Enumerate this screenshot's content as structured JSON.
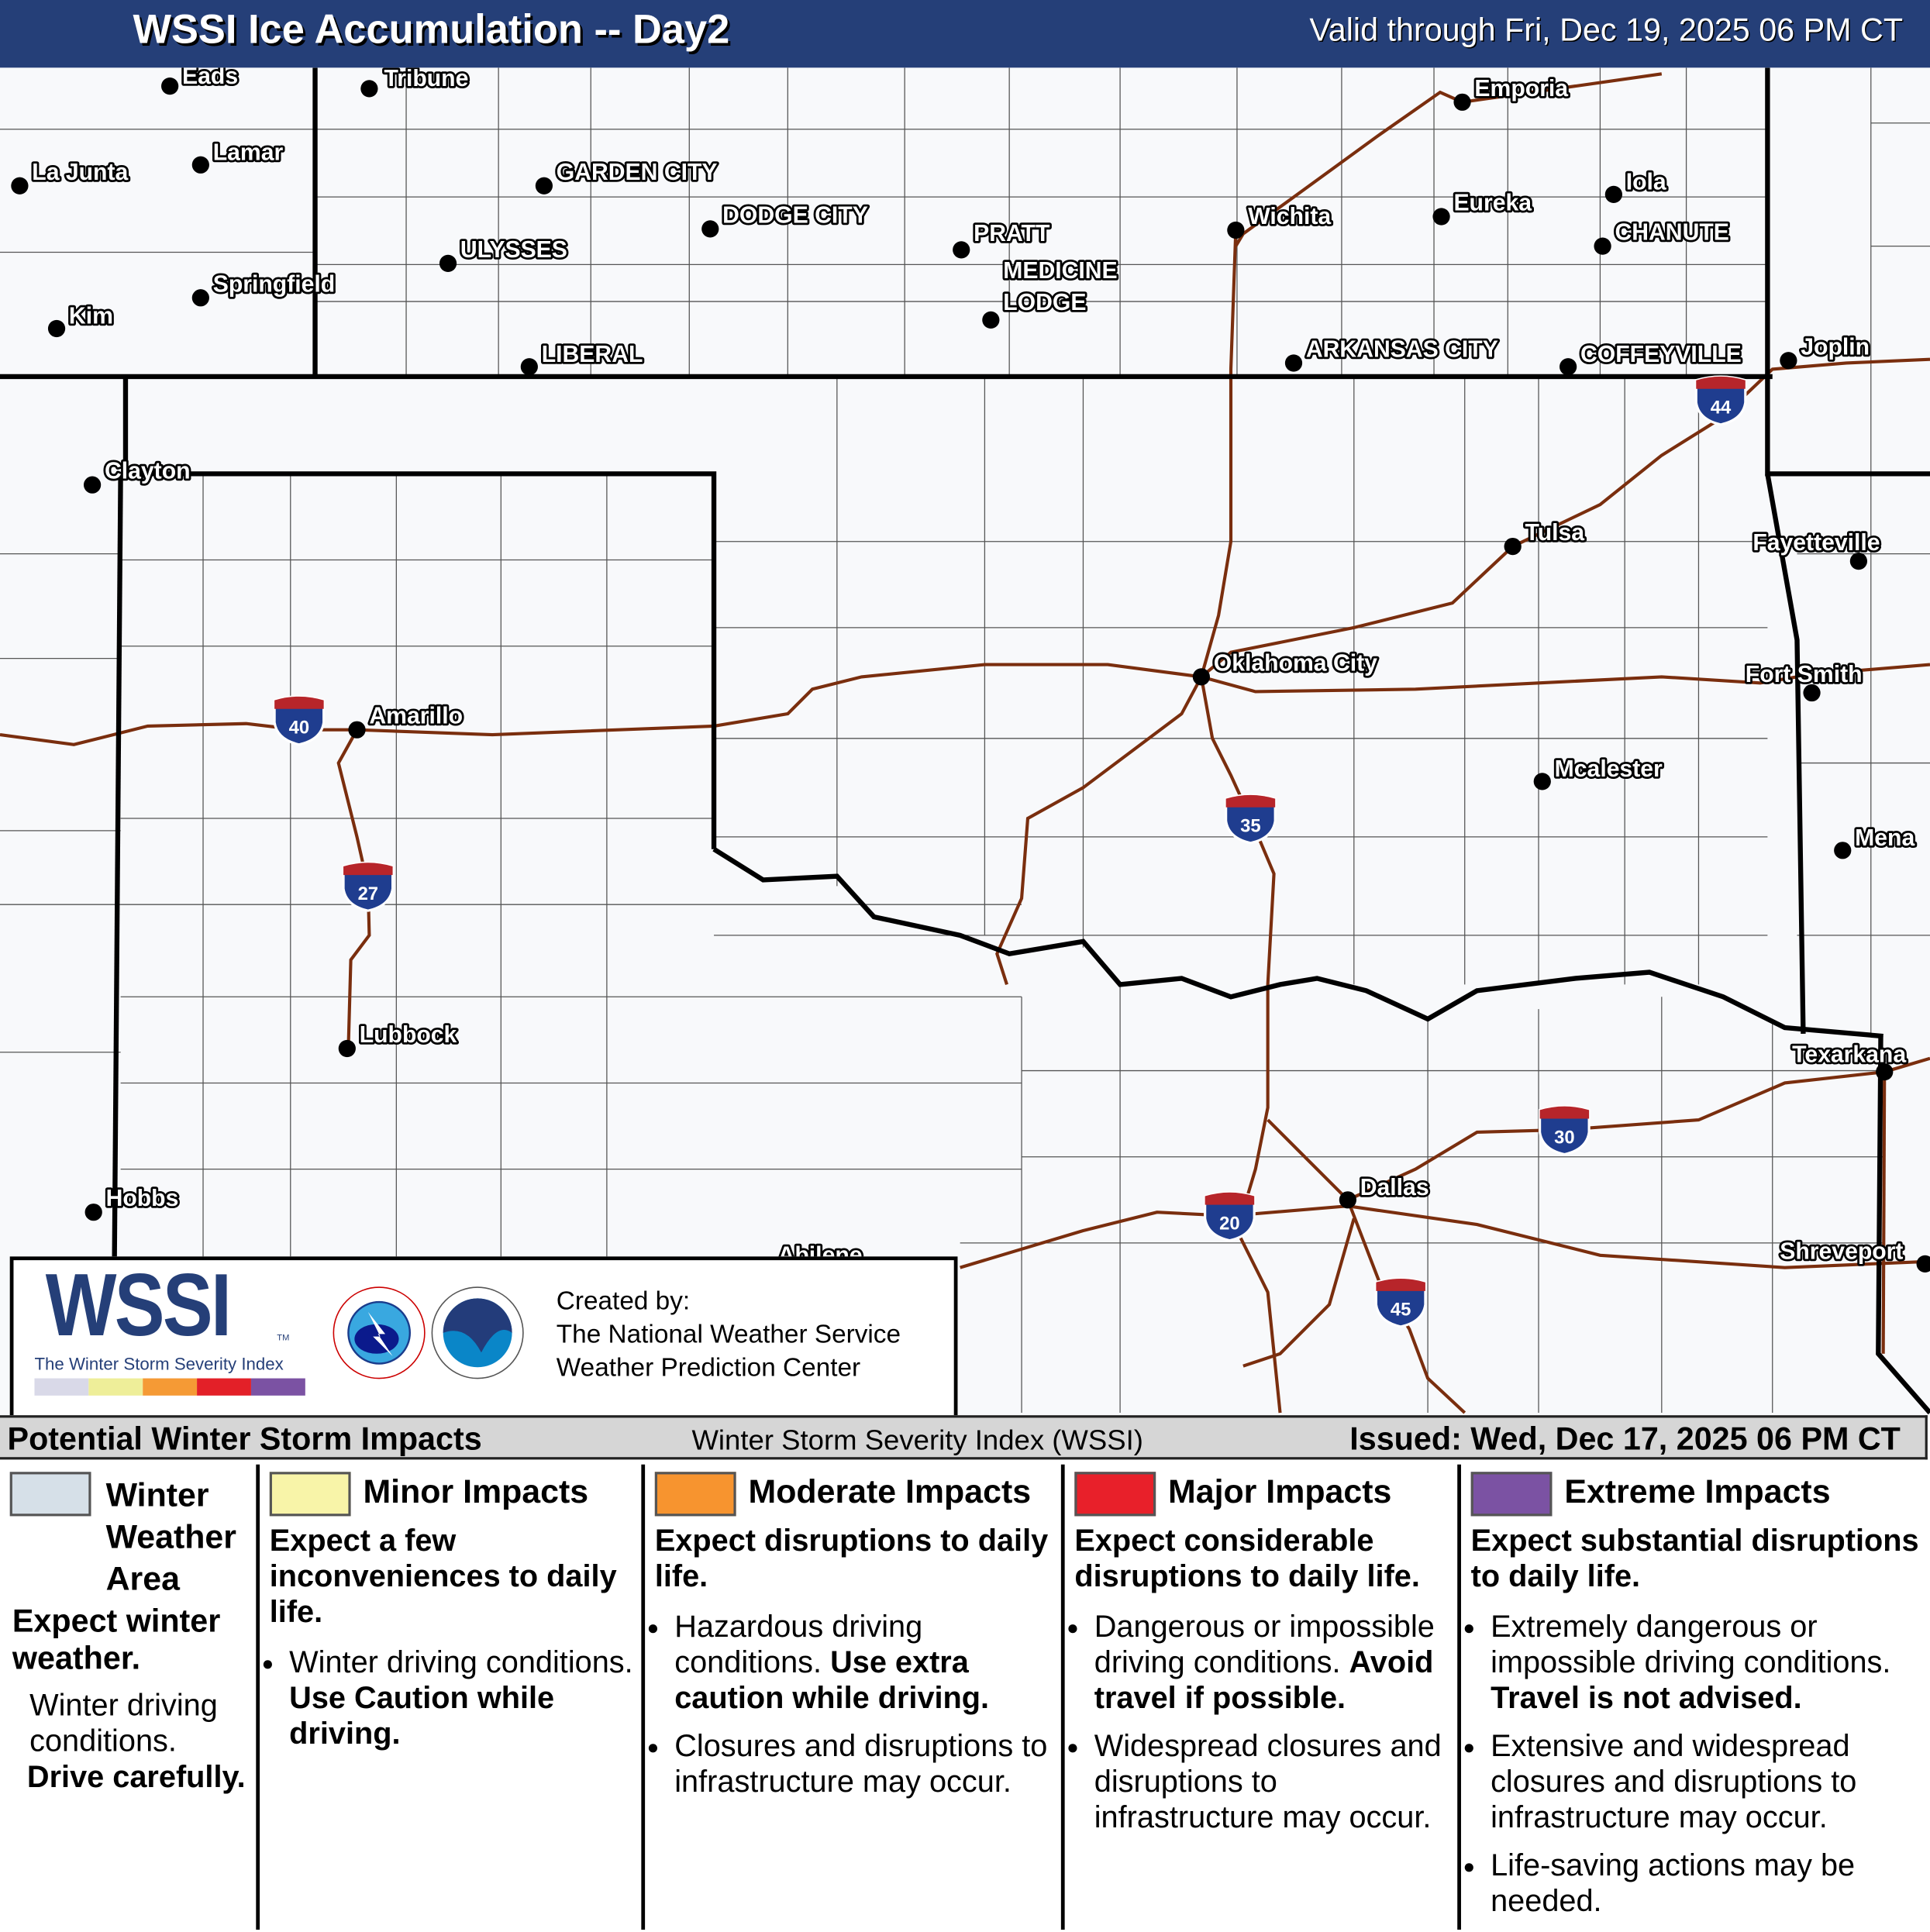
{
  "header": {
    "title": "WSSI Ice Accumulation -- Day2",
    "valid": "Valid through Fri, Dec 19, 2025 06 PM CT"
  },
  "map": {
    "colors": {
      "background": "#f8f9fb",
      "roads": "#7a2e0e",
      "borders": "#000000",
      "header": "#253f78"
    },
    "cities": [
      {
        "name": "Eads",
        "dot": true
      },
      {
        "name": "Tribune",
        "dot": true
      },
      {
        "name": "La Junta",
        "dot": true
      },
      {
        "name": "Lamar",
        "dot": true
      },
      {
        "name": "Springfield",
        "dot": true
      },
      {
        "name": "Kim",
        "dot": true
      },
      {
        "name": "GARDEN CITY",
        "dot": true
      },
      {
        "name": "ULYSSES",
        "dot": true
      },
      {
        "name": "DODGE CITY",
        "dot": true
      },
      {
        "name": "LIBERAL",
        "dot": true
      },
      {
        "name": "PRATT",
        "dot": true
      },
      {
        "name": "MEDICINE",
        "dot": true
      },
      {
        "name": "Wichita",
        "dot": true
      },
      {
        "name": "Emporia",
        "dot": true
      },
      {
        "name": "Eureka",
        "dot": true
      },
      {
        "name": "Iola",
        "dot": true
      },
      {
        "name": "CHANUTE",
        "dot": true
      },
      {
        "name": "ARKANSAS CITY",
        "dot": true
      },
      {
        "name": "COFFEYVILLE",
        "dot": true
      },
      {
        "name": "Joplin",
        "dot": true
      },
      {
        "name": "Clayton",
        "dot": true
      },
      {
        "name": "Tulsa",
        "dot": true
      },
      {
        "name": "Fayetteville",
        "dot": true
      },
      {
        "name": "Oklahoma City",
        "dot": true
      },
      {
        "name": "Fort Smith",
        "dot": true
      },
      {
        "name": "Amarillo",
        "dot": true
      },
      {
        "name": "Mcalester",
        "dot": true
      },
      {
        "name": "Mena",
        "dot": true
      },
      {
        "name": "Lubbock",
        "dot": true
      },
      {
        "name": "Texarkana",
        "dot": true
      },
      {
        "name": "Hobbs",
        "dot": true
      },
      {
        "name": "Dallas",
        "dot": true
      },
      {
        "name": "Abilene",
        "dot": false
      },
      {
        "name": "Shreveport",
        "dot": true
      }
    ],
    "medicine_line2": "LODGE",
    "interstates": [
      "40",
      "27",
      "35",
      "44",
      "30",
      "20",
      "45"
    ]
  },
  "logo": {
    "wssi": "WSSI",
    "tm": "TM",
    "subtitle": "The Winter Storm Severity Index",
    "scale_colors": [
      "#d9d9e8",
      "#eeee99",
      "#f59a35",
      "#e32028",
      "#7b52a3"
    ],
    "created_by": "Created by:",
    "org1": "The National Weather Service",
    "org2": "Weather Prediction Center"
  },
  "legend": {
    "title": "Potential Winter Storm Impacts",
    "subtitle": "Winter Storm Severity Index (WSSI)",
    "issued": "Issued: Wed, Dec 17, 2025 06 PM CT",
    "categories": [
      {
        "name": "Winter Weather Area",
        "color": "#d6e0e8",
        "headline": "Expect winter weather.",
        "text": "Winter driving conditions.",
        "bold": "Drive carefully."
      },
      {
        "name": "Minor Impacts",
        "color": "#f8f4a8",
        "headline": "Expect a few inconveniences to daily life.",
        "bullets": [
          {
            "text": "Winter driving conditions. ",
            "bold": "Use Caution while driving."
          }
        ]
      },
      {
        "name": "Moderate Impacts",
        "color": "#f7942f",
        "headline": "Expect disruptions to daily life.",
        "bullets": [
          {
            "text": "Hazardous driving conditions. ",
            "bold": "Use extra caution while driving."
          },
          {
            "text": "Closures and disruptions to infrastructure may occur.",
            "bold": ""
          }
        ]
      },
      {
        "name": "Major Impacts",
        "color": "#e8202a",
        "headline": "Expect considerable disruptions to daily life.",
        "bullets": [
          {
            "text": "Dangerous or impossible driving conditions. ",
            "bold": "Avoid travel if possible."
          },
          {
            "text": "Widespread closures and disruptions to infrastructure may occur.",
            "bold": ""
          }
        ]
      },
      {
        "name": "Extreme Impacts",
        "color": "#7b52a3",
        "headline": "Expect substantial disruptions to daily life.",
        "bullets": [
          {
            "text": "Extremely dangerous or impossible driving conditions. ",
            "bold": "Travel is not advised."
          },
          {
            "text": "Extensive and widespread closures and disruptions to infrastructure may occur.",
            "bold": ""
          },
          {
            "text": "Life-saving actions may be needed.",
            "bold": ""
          }
        ]
      }
    ]
  }
}
